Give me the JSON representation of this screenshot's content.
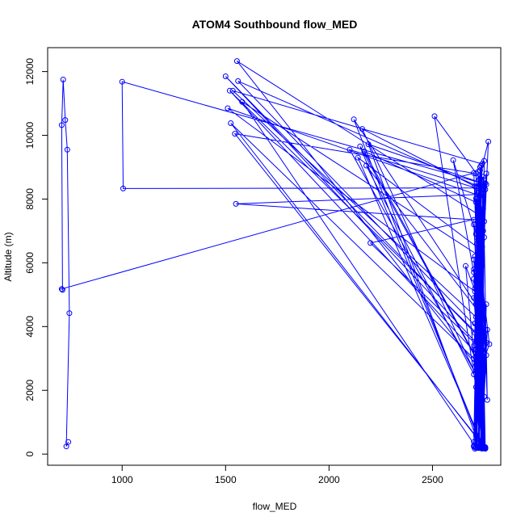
{
  "chart_data": {
    "type": "line",
    "title": "ATOM4 Southbound flow_MED",
    "xlabel": "flow_MED",
    "ylabel": "Altitude (m)",
    "xlim": [
      640,
      2830
    ],
    "ylim": [
      -350,
      12750
    ],
    "x_ticks": [
      1000,
      1500,
      2000,
      2500
    ],
    "y_ticks": [
      0,
      2000,
      4000,
      6000,
      8000,
      10000,
      12000
    ],
    "grid": false,
    "series": [
      {
        "color": "#0000ff",
        "marker": "open-circle",
        "x": [
          740,
          730,
          745,
          735,
          725,
          715,
          708,
          712,
          708,
          2700,
          2745,
          2720,
          2735,
          2710,
          2750,
          2730,
          2700,
          2755,
          2725,
          2715,
          1005,
          1000,
          2760,
          2700,
          2720,
          2740,
          2730,
          2710,
          2725,
          2750,
          2735,
          2700,
          1550,
          2745,
          2735,
          2720,
          2710,
          2730,
          2740,
          2750,
          2725,
          1500,
          2750,
          2715,
          2735,
          2720,
          2745,
          2705,
          2730,
          2755,
          2710,
          1555,
          2725,
          2740,
          2705,
          2730,
          2700,
          2735,
          2720,
          1520,
          2760,
          2730,
          2715,
          2745,
          2720,
          2700,
          2750,
          2735,
          2710,
          1535,
          2740,
          2705,
          2730,
          2720,
          2740,
          2710,
          2755,
          1560,
          2725,
          2700,
          2745,
          2715,
          2735,
          2710,
          1545,
          2755,
          2725,
          2740,
          2715,
          2730,
          1510,
          2705,
          2740,
          2720,
          2750,
          2730,
          1580,
          2710,
          2745,
          2720,
          2735,
          2715,
          2750,
          1525,
          2700,
          2725,
          2740,
          2710,
          2735,
          2100,
          2720,
          2755,
          2700,
          2740,
          2725,
          2745,
          2150,
          2710,
          2735,
          2750,
          2720,
          2705,
          2160,
          2730,
          2715,
          2745,
          2700,
          2725,
          2755,
          2510,
          2735,
          2710,
          2740,
          2720,
          2730,
          2180,
          2700,
          2745,
          2725,
          2715,
          2755,
          2740,
          2120,
          2710,
          2735,
          2700,
          2720,
          2750,
          2200,
          2725,
          2745,
          2705,
          2740,
          2730,
          2170,
          2710,
          2755,
          2725,
          2720,
          2750,
          2140,
          2735,
          2700,
          2745,
          2715,
          2740,
          2190,
          2730,
          2705,
          2760,
          2720,
          2745,
          2600,
          2710,
          2735,
          2755,
          2700,
          2725,
          2660,
          2740,
          2730,
          2715,
          2770,
          2705,
          2760,
          2740,
          2720,
          2750,
          2765,
          2730,
          2710,
          2745,
          2765,
          2735,
          2700,
          2720,
          2755,
          2730,
          2760,
          2710,
          2740,
          2745,
          2725,
          2715,
          2775,
          2735,
          2705
        ],
        "y": [
          380,
          240,
          4420,
          9550,
          10480,
          11750,
          10320,
          5150,
          5180,
          8820,
          240,
          4300,
          9050,
          200,
          8400,
          3800,
          5700,
          8500,
          220,
          8350,
          8330,
          11680,
          8460,
          380,
          7900,
          240,
          6300,
          8020,
          190,
          9200,
          3000,
          7350,
          7850,
          8150,
          200,
          7600,
          600,
          9000,
          180,
          7300,
          3400,
          11850,
          3500,
          8000,
          230,
          7100,
          3700,
          5200,
          8650,
          210,
          2800,
          12330,
          7500,
          210,
          4100,
          8900,
          250,
          6900,
          3100,
          11400,
          3500,
          7200,
          260,
          8700,
          3300,
          4900,
          6800,
          280,
          4300,
          11400,
          9100,
          260,
          7400,
          3600,
          6500,
          200,
          8300,
          11700,
          3900,
          5500,
          230,
          6600,
          3200,
          8800,
          10050,
          200,
          4600,
          6700,
          2900,
          8100,
          10850,
          5100,
          190,
          7800,
          2600,
          6200,
          11050,
          220,
          4200,
          8200,
          3400,
          6000,
          210,
          10380,
          3000,
          7700,
          170,
          5400,
          8300,
          9550,
          2400,
          190,
          6100,
          4500,
          8600,
          200,
          9650,
          3000,
          7000,
          190,
          4900,
          8400,
          10200,
          2200,
          7100,
          200,
          5800,
          3600,
          180,
          10600,
          8600,
          3300,
          200,
          6000,
          4400,
          9050,
          2500,
          7000,
          240,
          6600,
          3900,
          190,
          10500,
          4700,
          8200,
          230,
          5300,
          3200,
          6620,
          7400,
          200,
          4100,
          5900,
          2800,
          9500,
          7900,
          220,
          5000,
          3700,
          180,
          9300,
          6400,
          260,
          7700,
          4900,
          8500,
          9720,
          200,
          3800,
          8800,
          190,
          4100,
          9220,
          6900,
          3100,
          170,
          7200,
          4800,
          5900,
          220,
          3500,
          8400,
          9800,
          170,
          4700,
          210,
          8850,
          1800,
          3900,
          190,
          2100,
          8500,
          1700,
          6500,
          3400,
          4500,
          170,
          7300,
          3100,
          5600,
          2300,
          190,
          4000,
          6800,
          3450,
          2700,
          6200
        ]
      }
    ]
  }
}
